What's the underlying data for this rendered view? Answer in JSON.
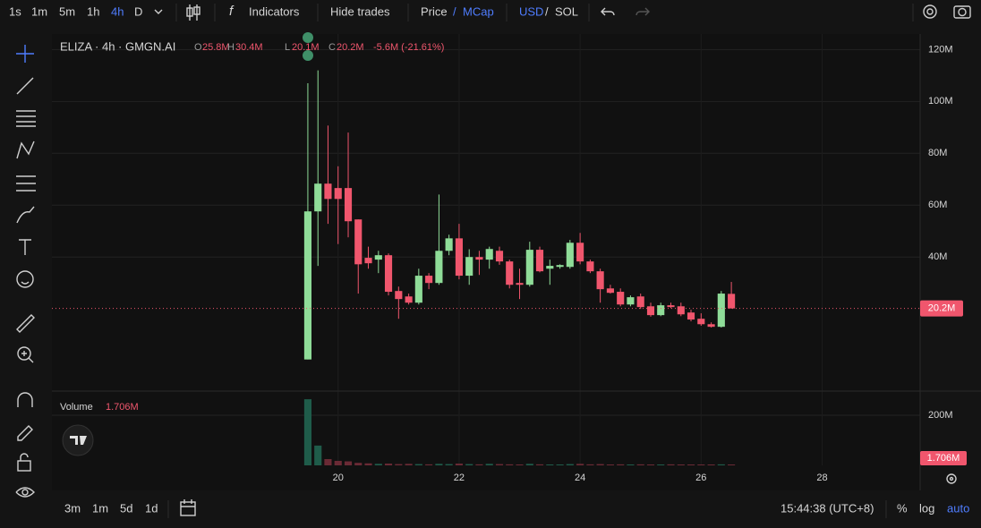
{
  "toolbar": {
    "intervals": [
      "1s",
      "1m",
      "5m",
      "1h",
      "4h",
      "D"
    ],
    "indicators": "Indicators",
    "hide_trades": "Hide trades",
    "price": "Price",
    "separator": "/",
    "mcap": "MCap",
    "usd": "USD",
    "sol": "SOL"
  },
  "legend": {
    "symbol": "ELIZA · 4h · GMGN.AI",
    "o_label": "O",
    "o": "25.8M",
    "h_label": "H",
    "h": "30.4M",
    "l_label": "L",
    "l": "20.1M",
    "c_label": "C",
    "c": "20.2M",
    "change": "-5.6M (-21.61%)"
  },
  "volume_legend": {
    "label": "Volume",
    "value": "1.706M"
  },
  "bottom_bar": {
    "ranges": [
      "3m",
      "1m",
      "5d",
      "1d"
    ],
    "time": "15:44:38 (UTC+8)",
    "percent": "%",
    "log": "log",
    "auto": "auto"
  },
  "chart_data": {
    "type": "candlestick",
    "x": [
      19.5,
      19.667,
      19.833,
      20,
      20.167,
      20.333,
      20.5,
      20.667,
      20.833,
      21,
      21.167,
      21.333,
      21.5,
      21.667,
      21.833,
      22,
      22.167,
      22.333,
      22.5,
      22.667,
      22.833,
      23,
      23.167,
      23.333,
      23.5,
      23.667,
      23.833,
      24,
      24.167,
      24.333,
      24.5,
      24.667,
      24.833,
      25,
      25.167,
      25.333,
      25.5,
      25.667,
      25.833,
      26,
      26.167,
      26.333,
      26.5
    ],
    "open": [
      0.5,
      57.6,
      68.3,
      66.6,
      66.6,
      54.5,
      39.7,
      39,
      40.7,
      26.9,
      24.8,
      22.4,
      32.8,
      30,
      42.4,
      47.2,
      32.8,
      40,
      39,
      42.4,
      38.3,
      30,
      29.3,
      42.8,
      35.5,
      36.2,
      36.2,
      45.5,
      38.3,
      34.5,
      27.9,
      26.6,
      21.7,
      24.8,
      21,
      17.6,
      21.4,
      21,
      18.6,
      16.2,
      14.1,
      13.1,
      25.8
    ],
    "high": [
      107,
      112,
      90.7,
      75,
      88,
      54.5,
      44,
      42.4,
      41.4,
      28.6,
      25.9,
      35.5,
      33.8,
      64.1,
      48.6,
      52.8,
      43,
      42.4,
      44,
      44,
      39,
      35.5,
      45.9,
      44,
      39,
      37.2,
      46.6,
      49.3,
      39,
      35.5,
      29.3,
      27.9,
      25.2,
      25.9,
      22.4,
      22.4,
      22.4,
      22.4,
      19.7,
      18.3,
      14.8,
      26.9,
      30.4
    ],
    "low": [
      0.5,
      36.6,
      52.8,
      45,
      47.6,
      25.9,
      35.5,
      33.8,
      25.2,
      16.2,
      21.7,
      21.7,
      27.6,
      29.3,
      40.7,
      31.4,
      29.3,
      33.1,
      35.5,
      37,
      27.9,
      23.8,
      28.6,
      34.1,
      29.3,
      35.5,
      35.5,
      37.2,
      33.8,
      22.4,
      25.9,
      21,
      21,
      20,
      17,
      17.2,
      20.3,
      17.2,
      15.2,
      13.5,
      12.8,
      12.8,
      20.1
    ],
    "close": [
      57.6,
      68.3,
      62.4,
      62.4,
      53.8,
      37.2,
      37.6,
      40.7,
      26.6,
      23.8,
      22.4,
      32.8,
      30,
      42.4,
      47.2,
      32.8,
      40,
      39,
      43.1,
      38.3,
      29.3,
      29.3,
      42.8,
      34.5,
      36.6,
      36.9,
      45.5,
      38.3,
      34.5,
      27.6,
      26.2,
      21.7,
      24.5,
      20.7,
      17.6,
      21.4,
      20.7,
      17.9,
      15.9,
      14.1,
      13.1,
      25.9,
      20.2
    ],
    "volume": [
      264,
      79,
      25,
      18,
      16,
      10,
      8,
      6,
      7,
      5,
      6,
      5,
      4,
      6,
      5,
      7,
      5,
      4,
      6,
      5,
      4,
      3,
      6,
      4,
      3,
      3,
      5,
      6,
      4,
      5,
      3,
      4,
      3,
      4,
      3,
      3,
      4,
      3,
      3,
      3,
      2,
      4,
      1.706
    ],
    "up_color": "#8fdc98",
    "down_color": "#f0566d",
    "volume_up_color": "#1f5c4a",
    "volume_down_color": "#6a2a35",
    "xlim": [
      15.27,
      29.62
    ],
    "xticks": [
      20,
      22,
      24,
      26,
      28
    ],
    "ylim": [
      -11,
      126
    ],
    "yticks": [
      {
        "value": 40,
        "label": "40M"
      },
      {
        "value": 60,
        "label": "60M"
      },
      {
        "value": 80,
        "label": "80M"
      },
      {
        "value": 100,
        "label": "100M"
      },
      {
        "value": 120,
        "label": "120M"
      }
    ],
    "y2lim": [
      0,
      293
    ],
    "y2ticks": [
      {
        "value": 200,
        "label": "200M"
      }
    ],
    "last_price": {
      "value": 20.2,
      "label": "20.2M"
    },
    "last_volume": {
      "value": 1.706,
      "label": "1.706M"
    },
    "grid": true
  }
}
